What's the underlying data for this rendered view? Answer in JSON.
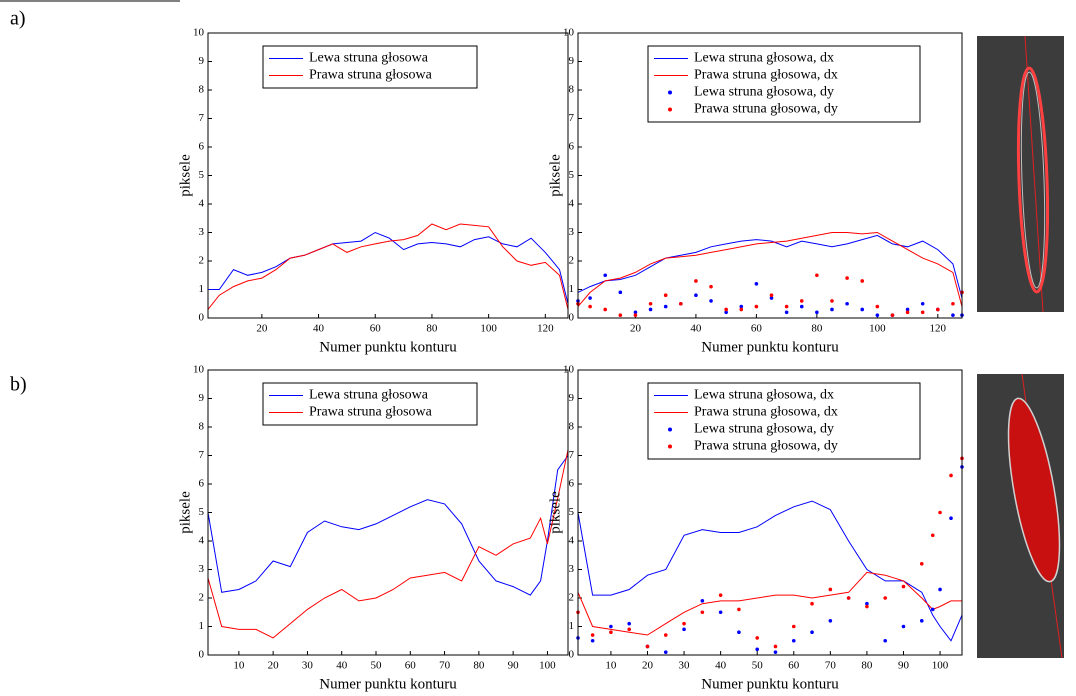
{
  "panel_labels": [
    "a)",
    "b)"
  ],
  "chart_data": [
    {
      "type": "line",
      "xlabel": "Numer punktu konturu",
      "ylabel": "piksele",
      "xlim": [
        1,
        128
      ],
      "ylim": [
        0,
        10
      ],
      "xticks": [
        20,
        40,
        60,
        80,
        100,
        120
      ],
      "yticks": [
        0,
        1,
        2,
        3,
        4,
        5,
        6,
        7,
        8,
        9,
        10
      ],
      "legend": "upper center",
      "x": [
        1,
        5,
        10,
        15,
        20,
        25,
        30,
        35,
        40,
        45,
        50,
        55,
        60,
        65,
        70,
        75,
        80,
        85,
        90,
        95,
        100,
        105,
        110,
        115,
        120,
        125,
        128
      ],
      "series": [
        {
          "name": "Lewa struna głosowa",
          "color": "#0000ff",
          "style": "line",
          "values": [
            1.0,
            1.0,
            1.7,
            1.5,
            1.6,
            1.8,
            2.1,
            2.2,
            2.4,
            2.6,
            2.65,
            2.7,
            3.0,
            2.8,
            2.4,
            2.6,
            2.65,
            2.6,
            2.5,
            2.75,
            2.85,
            2.6,
            2.5,
            2.8,
            2.3,
            1.7,
            0.5
          ]
        },
        {
          "name": "Prawa struna głosowa",
          "color": "#ff0000",
          "style": "line",
          "values": [
            0.3,
            0.8,
            1.1,
            1.3,
            1.4,
            1.7,
            2.1,
            2.2,
            2.4,
            2.6,
            2.3,
            2.5,
            2.6,
            2.7,
            2.75,
            2.9,
            3.3,
            3.1,
            3.3,
            3.25,
            3.2,
            2.5,
            2.0,
            1.85,
            1.95,
            1.5,
            0.3
          ]
        }
      ]
    },
    {
      "type": "line",
      "xlabel": "Numer punktu konturu",
      "ylabel": "piksele",
      "xlim": [
        1,
        128
      ],
      "ylim": [
        0,
        10
      ],
      "xticks": [
        20,
        40,
        60,
        80,
        100,
        120
      ],
      "yticks": [
        0,
        1,
        2,
        3,
        4,
        5,
        6,
        7,
        8,
        9,
        10
      ],
      "legend": "upper right",
      "x": [
        1,
        5,
        10,
        15,
        20,
        25,
        30,
        35,
        40,
        45,
        50,
        55,
        60,
        65,
        70,
        75,
        80,
        85,
        90,
        95,
        100,
        105,
        110,
        115,
        120,
        125,
        128
      ],
      "series": [
        {
          "name": "Lewa struna głosowa, dx",
          "color": "#0000ff",
          "style": "line",
          "values": [
            0.9,
            1.1,
            1.3,
            1.35,
            1.5,
            1.8,
            2.1,
            2.2,
            2.3,
            2.5,
            2.6,
            2.7,
            2.75,
            2.7,
            2.5,
            2.7,
            2.6,
            2.5,
            2.6,
            2.75,
            2.9,
            2.6,
            2.5,
            2.7,
            2.4,
            1.9,
            0.7
          ]
        },
        {
          "name": "Prawa struna głosowa, dx",
          "color": "#ff0000",
          "style": "line",
          "values": [
            0.4,
            0.9,
            1.3,
            1.4,
            1.6,
            1.9,
            2.1,
            2.15,
            2.2,
            2.3,
            2.4,
            2.5,
            2.6,
            2.65,
            2.7,
            2.8,
            2.9,
            3.0,
            3.0,
            2.95,
            3.0,
            2.7,
            2.4,
            2.1,
            1.9,
            1.6,
            0.4
          ]
        },
        {
          "name": "Lewa struna głosowa, dy",
          "color": "#0000ff",
          "style": "dots",
          "values": [
            0.6,
            0.7,
            1.5,
            0.9,
            0.2,
            0.3,
            0.4,
            0.5,
            0.8,
            0.6,
            0.2,
            0.4,
            1.2,
            0.7,
            0.2,
            0.4,
            0.2,
            0.3,
            0.5,
            0.3,
            0.1,
            0.1,
            0.3,
            0.5,
            0.3,
            0.1,
            0.1
          ]
        },
        {
          "name": "Prawa struna głosowa, dy",
          "color": "#ff0000",
          "style": "dots",
          "values": [
            0.5,
            0.4,
            0.3,
            0.1,
            0.1,
            0.5,
            0.8,
            0.5,
            1.3,
            1.1,
            0.3,
            0.3,
            0.4,
            0.8,
            0.4,
            0.6,
            1.5,
            0.6,
            1.4,
            1.3,
            0.4,
            0.1,
            0.2,
            0.2,
            0.3,
            0.5,
            0.9
          ]
        }
      ]
    },
    {
      "type": "line",
      "xlabel": "Numer punktu konturu",
      "ylabel": "piksele",
      "xlim": [
        1,
        106
      ],
      "ylim": [
        0,
        10
      ],
      "xticks": [
        10,
        20,
        30,
        40,
        50,
        60,
        70,
        80,
        90,
        100
      ],
      "yticks": [
        0,
        1,
        2,
        3,
        4,
        5,
        6,
        7,
        8,
        9,
        10
      ],
      "legend": "upper center",
      "x": [
        1,
        5,
        10,
        15,
        20,
        25,
        30,
        35,
        40,
        45,
        50,
        55,
        60,
        65,
        70,
        75,
        80,
        85,
        90,
        95,
        98,
        100,
        103,
        106
      ],
      "series": [
        {
          "name": "Lewa struna głosowa",
          "color": "#0000ff",
          "style": "line",
          "values": [
            5.0,
            2.2,
            2.3,
            2.6,
            3.3,
            3.1,
            4.3,
            4.7,
            4.5,
            4.4,
            4.6,
            4.9,
            5.2,
            5.45,
            5.3,
            4.6,
            3.3,
            2.6,
            2.4,
            2.1,
            2.6,
            4.0,
            6.5,
            7.0
          ]
        },
        {
          "name": "Prawa struna głosowa",
          "color": "#ff0000",
          "style": "line",
          "values": [
            2.7,
            1.0,
            0.9,
            0.9,
            0.6,
            1.1,
            1.6,
            2.0,
            2.3,
            1.9,
            2.0,
            2.3,
            2.7,
            2.8,
            2.9,
            2.6,
            3.8,
            3.5,
            3.9,
            4.1,
            4.8,
            3.9,
            5.5,
            7.2
          ]
        }
      ]
    },
    {
      "type": "line",
      "xlabel": "Numer punktu konturu",
      "ylabel": "piksele",
      "xlim": [
        1,
        106
      ],
      "ylim": [
        0,
        10
      ],
      "xticks": [
        10,
        20,
        30,
        40,
        50,
        60,
        70,
        80,
        90,
        100
      ],
      "yticks": [
        0,
        1,
        2,
        3,
        4,
        5,
        6,
        7,
        8,
        9,
        10
      ],
      "legend": "upper right",
      "x": [
        1,
        5,
        10,
        15,
        20,
        25,
        30,
        35,
        40,
        45,
        50,
        55,
        60,
        65,
        70,
        75,
        80,
        85,
        90,
        95,
        98,
        100,
        103,
        106
      ],
      "series": [
        {
          "name": "Lewa struna głosowa, dx",
          "color": "#0000ff",
          "style": "line",
          "values": [
            5.0,
            2.1,
            2.1,
            2.3,
            2.8,
            3.0,
            4.2,
            4.4,
            4.3,
            4.3,
            4.5,
            4.9,
            5.2,
            5.4,
            5.1,
            4.0,
            3.0,
            2.6,
            2.6,
            2.2,
            1.4,
            1.0,
            0.5,
            1.4
          ]
        },
        {
          "name": "Prawa struna głosowa, dx",
          "color": "#ff0000",
          "style": "line",
          "values": [
            2.2,
            1.0,
            0.9,
            0.8,
            0.7,
            1.1,
            1.5,
            1.8,
            1.9,
            1.9,
            2.0,
            2.1,
            2.1,
            2.0,
            2.1,
            2.2,
            2.9,
            2.8,
            2.6,
            2.0,
            1.6,
            1.7,
            1.9,
            1.9
          ]
        },
        {
          "name": "Lewa struna głosowa, dy",
          "color": "#0000ff",
          "style": "dots",
          "values": [
            0.6,
            0.5,
            1.0,
            1.1,
            0.3,
            0.1,
            0.9,
            1.9,
            1.5,
            0.8,
            0.2,
            0.1,
            0.5,
            0.8,
            1.2,
            2.0,
            1.8,
            0.5,
            1.0,
            1.2,
            1.6,
            2.3,
            4.8,
            6.6
          ]
        },
        {
          "name": "Prawa struna głosowa, dy",
          "color": "#ff0000",
          "style": "dots",
          "values": [
            1.5,
            0.7,
            0.8,
            0.9,
            0.3,
            0.7,
            1.1,
            1.5,
            2.1,
            1.6,
            0.6,
            0.3,
            1.0,
            1.8,
            2.3,
            2.0,
            1.7,
            2.0,
            2.4,
            3.2,
            4.2,
            5.0,
            6.3,
            6.9
          ]
        }
      ]
    }
  ]
}
